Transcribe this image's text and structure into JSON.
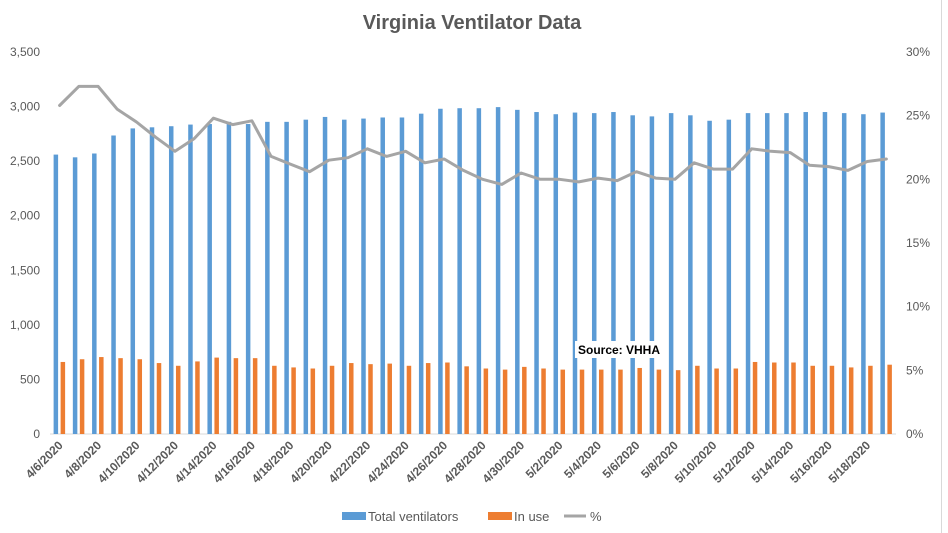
{
  "chart_data": {
    "type": "bar",
    "title": "Virginia Ventilator Data",
    "categories": [
      "4/6/2020",
      "4/7/2020",
      "4/8/2020",
      "4/9/2020",
      "4/10/2020",
      "4/11/2020",
      "4/12/2020",
      "4/13/2020",
      "4/14/2020",
      "4/15/2020",
      "4/16/2020",
      "4/17/2020",
      "4/18/2020",
      "4/19/2020",
      "4/20/2020",
      "4/21/2020",
      "4/22/2020",
      "4/23/2020",
      "4/24/2020",
      "4/25/2020",
      "4/26/2020",
      "4/27/2020",
      "4/28/2020",
      "4/29/2020",
      "4/30/2020",
      "5/1/2020",
      "5/2/2020",
      "5/3/2020",
      "5/4/2020",
      "5/5/2020",
      "5/6/2020",
      "5/7/2020",
      "5/8/2020",
      "5/9/2020",
      "5/10/2020",
      "5/11/2020",
      "5/12/2020",
      "5/13/2020",
      "5/14/2020",
      "5/15/2020",
      "5/16/2020",
      "5/17/2020",
      "5/18/2020",
      "5/19/2020"
    ],
    "x_tick_labels": [
      "4/6/2020",
      "4/8/2020",
      "4/10/2020",
      "4/12/2020",
      "4/14/2020",
      "4/16/2020",
      "4/18/2020",
      "4/20/2020",
      "4/22/2020",
      "4/24/2020",
      "4/26/2020",
      "4/28/2020",
      "4/30/2020",
      "5/2/2020",
      "5/4/2020",
      "5/6/2020",
      "5/8/2020",
      "5/10/2020",
      "5/12/2020",
      "5/14/2020",
      "5/16/2020",
      "5/18/2020"
    ],
    "series": [
      {
        "name": "Total ventilators",
        "color": "#5b9bd5",
        "axis": "left",
        "values": [
          2560,
          2535,
          2570,
          2735,
          2800,
          2810,
          2820,
          2835,
          2840,
          2860,
          2840,
          2860,
          2860,
          2880,
          2905,
          2880,
          2890,
          2900,
          2900,
          2935,
          2980,
          2985,
          2985,
          2995,
          2970,
          2950,
          2930,
          2945,
          2940,
          2950,
          2920,
          2910,
          2940,
          2920,
          2870,
          2880,
          2940,
          2940,
          2940,
          2950,
          2950,
          2940,
          2930,
          2945
        ]
      },
      {
        "name": "In use",
        "color": "#ed7d31",
        "axis": "left",
        "values": [
          660,
          685,
          705,
          695,
          685,
          650,
          625,
          665,
          700,
          695,
          695,
          625,
          610,
          600,
          625,
          650,
          640,
          645,
          625,
          650,
          655,
          620,
          600,
          590,
          615,
          600,
          590,
          590,
          590,
          590,
          605,
          590,
          585,
          625,
          600,
          600,
          660,
          655,
          655,
          625,
          625,
          610,
          625,
          635
        ]
      },
      {
        "name": "%",
        "color": "#a5a5a5",
        "axis": "right",
        "values": [
          0.258,
          0.273,
          0.273,
          0.255,
          0.245,
          0.233,
          0.222,
          0.232,
          0.248,
          0.243,
          0.246,
          0.218,
          0.212,
          0.206,
          0.215,
          0.217,
          0.224,
          0.218,
          0.222,
          0.213,
          0.216,
          0.207,
          0.2,
          0.196,
          0.205,
          0.2,
          0.2,
          0.198,
          0.201,
          0.199,
          0.206,
          0.201,
          0.2,
          0.213,
          0.208,
          0.208,
          0.224,
          0.222,
          0.221,
          0.211,
          0.21,
          0.207,
          0.214,
          0.216
        ]
      }
    ],
    "y_left": {
      "min": 0,
      "max": 3500,
      "ticks": [
        "0",
        "500",
        "1,000",
        "1,500",
        "2,000",
        "2,500",
        "3,000",
        "3,500"
      ]
    },
    "y_right": {
      "min": 0,
      "max": 0.3,
      "ticks": [
        "0%",
        "5%",
        "10%",
        "15%",
        "20%",
        "25%",
        "30%"
      ]
    },
    "grid": false,
    "legend_position": "bottom",
    "annotation": "Source: VHHA"
  }
}
